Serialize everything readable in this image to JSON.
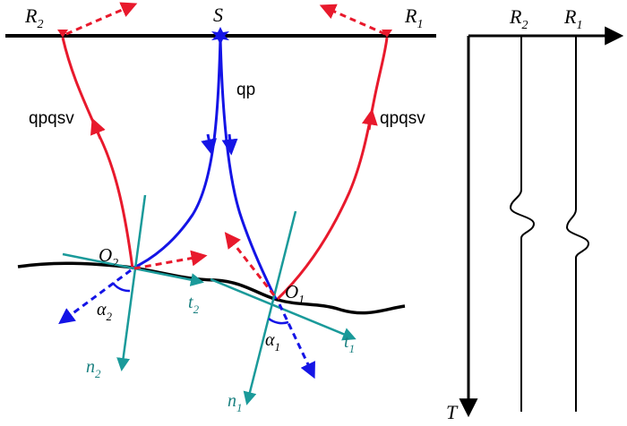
{
  "labels": {
    "source": "S",
    "receiver_1": "R",
    "receiver_1_sub": "1",
    "receiver_2": "R",
    "receiver_2_sub": "2",
    "ray_down": "qp",
    "ray_up_left": "qpqsv",
    "ray_up_right": "qpqsv",
    "point_1": "O",
    "point_1_sub": "1",
    "point_2": "O",
    "point_2_sub": "2",
    "tangent_1": "t",
    "tangent_1_sub": "1",
    "tangent_2": "t",
    "tangent_2_sub": "2",
    "normal_1": "n",
    "normal_1_sub": "1",
    "normal_2": "n",
    "normal_2_sub": "2",
    "angle_1": "α",
    "angle_1_sub": "1",
    "angle_2": "α",
    "angle_2_sub": "2",
    "trace_r2": "R",
    "trace_r2_sub": "2",
    "trace_r1": "R",
    "trace_r1_sub": "1",
    "time_axis": "T"
  },
  "colors": {
    "ground": "#000000",
    "down_ray": "#1414e6",
    "up_ray": "#e8192c",
    "normal_tangent": "#1a9a9a",
    "text": "#000000",
    "teal_text": "#1a8080"
  }
}
